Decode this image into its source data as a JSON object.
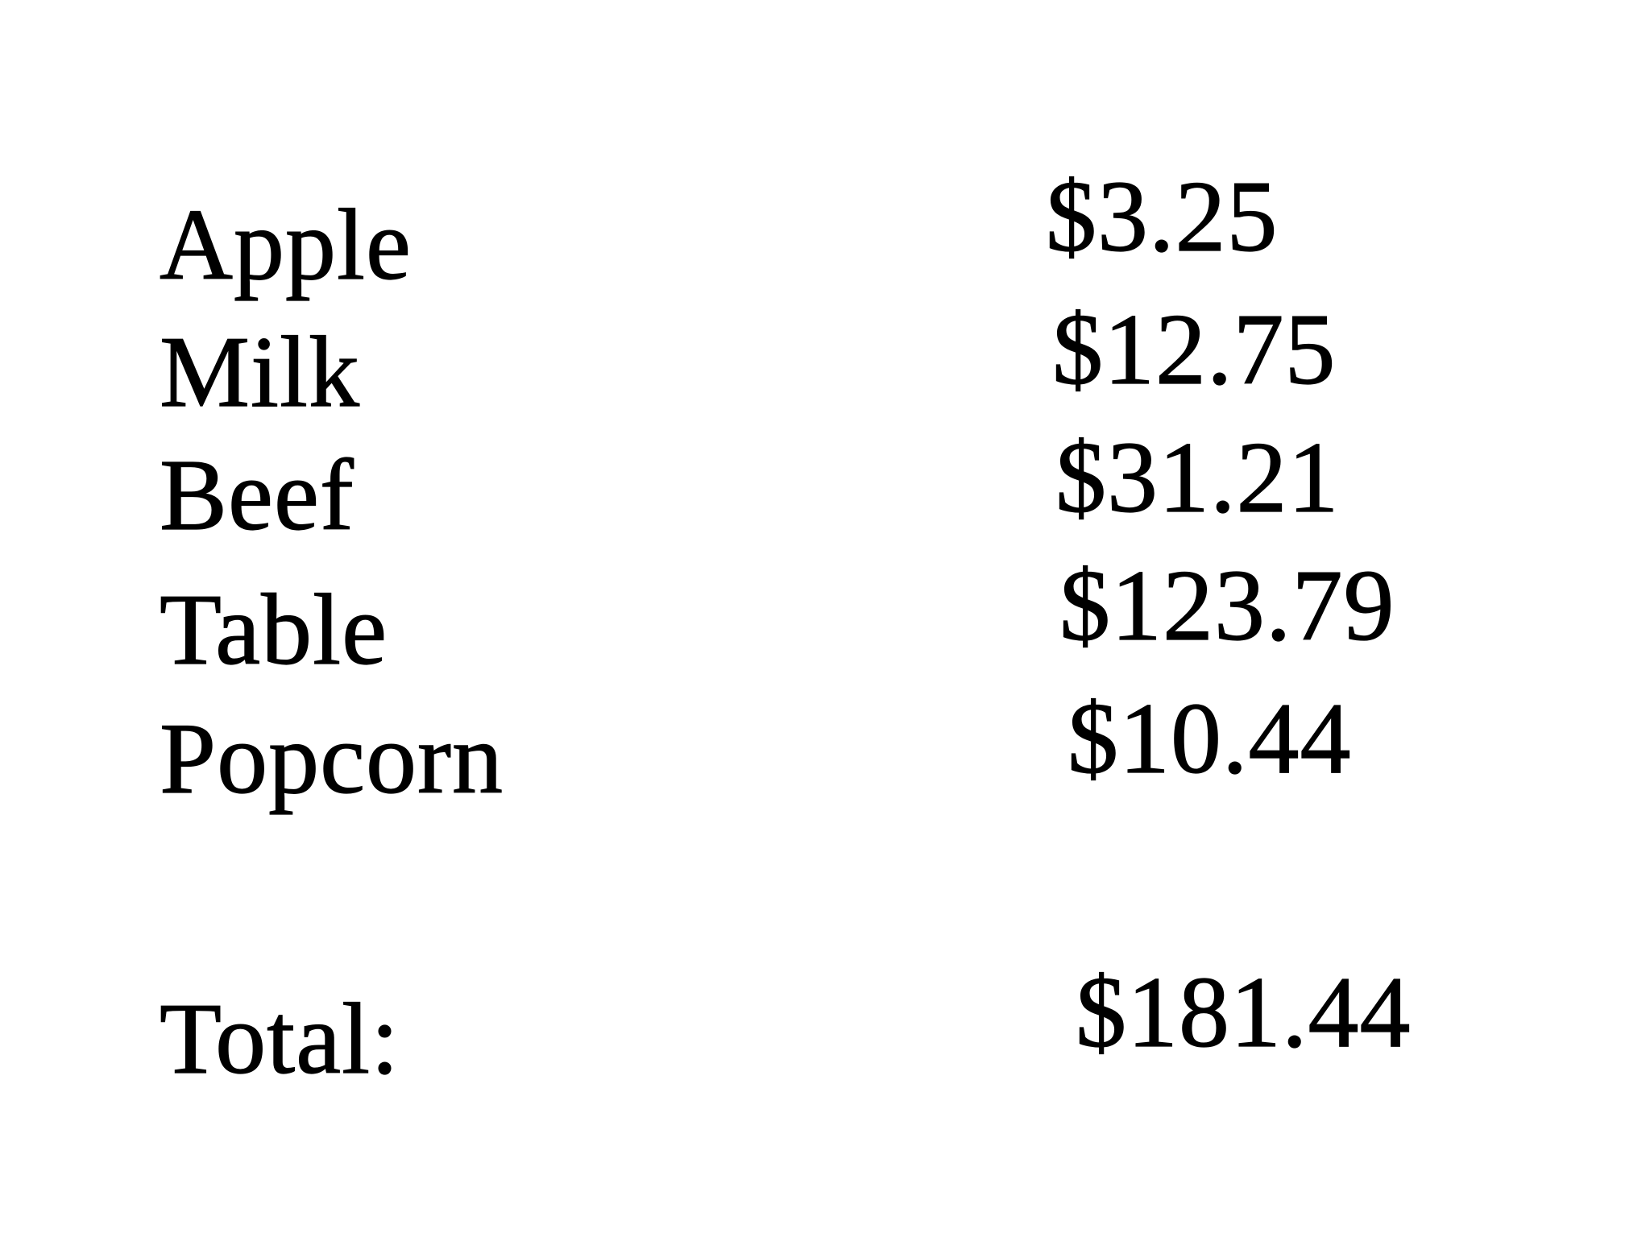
{
  "items": [
    {
      "name": "Apple",
      "price": "$3.25"
    },
    {
      "name": "Milk",
      "price": "$12.75"
    },
    {
      "name": "Beef",
      "price": "$31.21"
    },
    {
      "name": "Table",
      "price": "$123.79"
    },
    {
      "name": "Popcorn",
      "price": "$10.44"
    }
  ],
  "total": {
    "label": "Total:",
    "value": "$181.44"
  }
}
